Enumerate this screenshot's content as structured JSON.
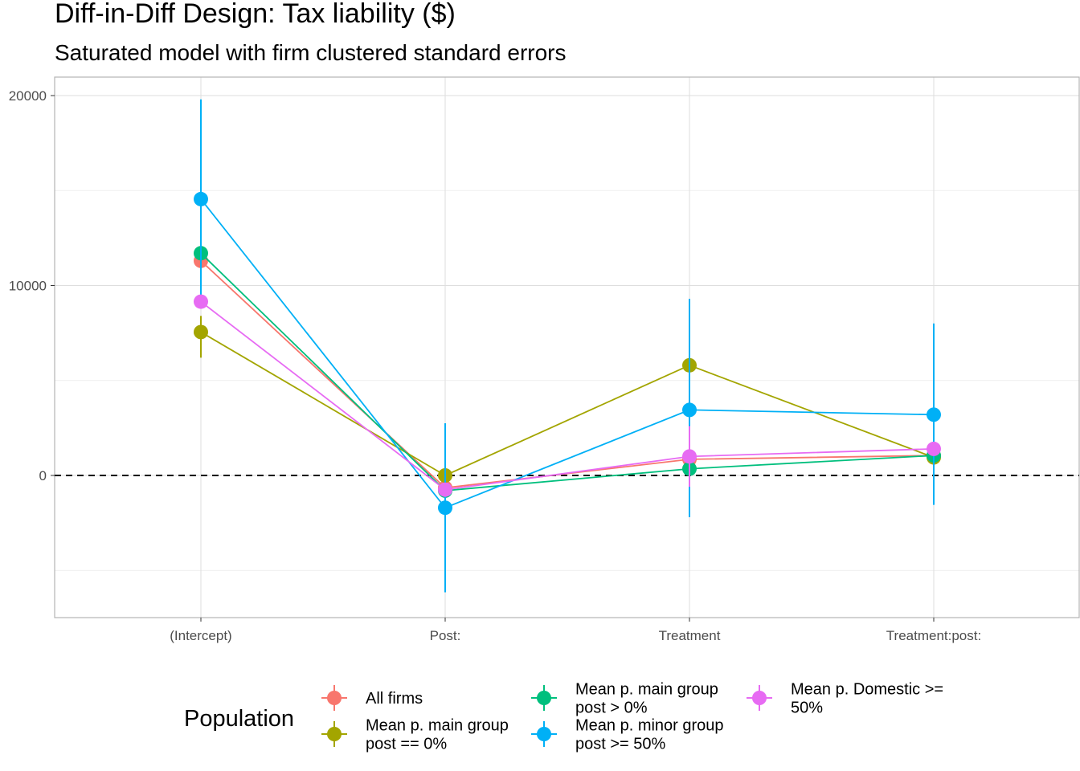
{
  "chart_data": {
    "type": "line",
    "title": "Diff-in-Diff Design: Tax liability  ($)",
    "subtitle": "Saturated model with firm clustered standard errors",
    "xlabel": "",
    "ylabel": "",
    "categories": [
      "(Intercept)",
      "Post:",
      "Treatment",
      "Treatment:post:"
    ],
    "ylim": [
      -7400,
      21000
    ],
    "y_ticks": [
      0,
      10000,
      20000
    ],
    "y_tick_labels": [
      "0",
      "10000",
      "20000"
    ],
    "grid": true,
    "reference_line": {
      "y": 0,
      "style": "dashed"
    },
    "legend": {
      "title": "Population",
      "placement": "bottom"
    },
    "series": [
      {
        "name": "All firms",
        "label_lines": [
          "All firms"
        ],
        "color": "#F8766D",
        "values": [
          11300,
          -650,
          850,
          1050
        ],
        "lower": [
          11300,
          -650,
          850,
          1050
        ],
        "upper": [
          11300,
          -650,
          850,
          1050
        ]
      },
      {
        "name": "Mean p. main group post == 0%",
        "label_lines": [
          "Mean p. main group",
          "post == 0%"
        ],
        "color": "#A3A500",
        "values": [
          7550,
          0,
          5800,
          950
        ],
        "lower": [
          6200,
          0,
          5800,
          950
        ],
        "upper": [
          8400,
          0,
          5800,
          950
        ]
      },
      {
        "name": "Mean p. main group post > 0%",
        "label_lines": [
          "Mean p. main group",
          "post > 0%"
        ],
        "color": "#00BF7D",
        "values": [
          11700,
          -800,
          350,
          1050
        ],
        "lower": [
          11700,
          -800,
          350,
          1050
        ],
        "upper": [
          11700,
          -800,
          350,
          1050
        ]
      },
      {
        "name": "Mean p. minor group post >= 50%",
        "label_lines": [
          "Mean p. minor group",
          "post >= 50%"
        ],
        "color": "#00B0F6",
        "values": [
          14550,
          -1700,
          3450,
          3200
        ],
        "lower": [
          9300,
          -6150,
          -2200,
          -1550
        ],
        "upper": [
          19800,
          2750,
          9300,
          8000
        ]
      },
      {
        "name": "Mean p. Domestic >= 50%",
        "label_lines": [
          "Mean p. Domestic >=",
          "50%"
        ],
        "color": "#E76BF3",
        "values": [
          9150,
          -750,
          1000,
          1400
        ],
        "lower": [
          9150,
          -750,
          -600,
          1400
        ],
        "upper": [
          9150,
          -750,
          2600,
          1400
        ]
      }
    ]
  }
}
